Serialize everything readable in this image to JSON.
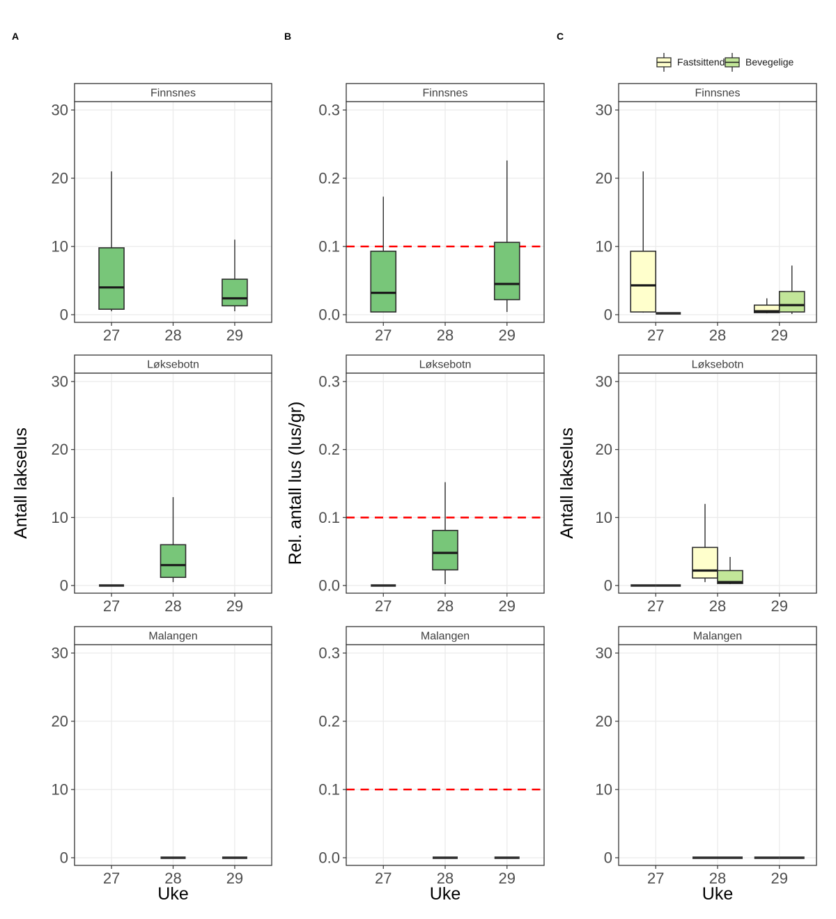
{
  "figure": {
    "panel_labels": [
      "A",
      "B",
      "C"
    ],
    "x_axis_title": "Uke",
    "x_categories": [
      "27",
      "28",
      "29"
    ],
    "facet_names": [
      "Finnsnes",
      "Løksebotn",
      "Malangen"
    ],
    "legend": {
      "items": [
        {
          "label": "Fastsittende",
          "color": "#FFFFCC"
        },
        {
          "label": "Bevegelige",
          "color": "#C2E699"
        }
      ]
    },
    "colors": {
      "single_series_fill": "#78C679",
      "fastsittende_fill": "#FFFFCC",
      "bevegelige_fill": "#C2E699",
      "box_stroke": "#2b2b2b",
      "median": "#1a1a1a",
      "grid": "#EBEBEB",
      "panel_border": "#333333",
      "reference_line": "#FF0000",
      "tick_label": "#4d4d4d",
      "strip_text": "#404040"
    }
  },
  "chart_data": [
    {
      "type": "boxplot",
      "panel": "A",
      "title": "",
      "ylabel": "Antall lakselus",
      "xlabel": "Uke",
      "ylim": [
        0,
        30
      ],
      "ytick_values": [
        0,
        10,
        20,
        30
      ],
      "ytick_labels": [
        "0",
        "10",
        "20",
        "30"
      ],
      "ref_line": null,
      "facets": [
        {
          "name": "Finnsnes",
          "boxes": [
            {
              "week": "27",
              "series": "all",
              "flat": false,
              "stats": {
                "min": 0.5,
                "q1": 0.8,
                "med": 4.0,
                "q3": 9.8,
                "max": 21.0
              }
            },
            {
              "week": "29",
              "series": "all",
              "flat": false,
              "stats": {
                "min": 0.5,
                "q1": 1.3,
                "med": 2.4,
                "q3": 5.2,
                "max": 11.0
              }
            }
          ]
        },
        {
          "name": "Løksebotn",
          "boxes": [
            {
              "week": "27",
              "series": "all",
              "flat": true,
              "stats": {
                "min": 0,
                "q1": 0,
                "med": 0,
                "q3": 0,
                "max": 0
              }
            },
            {
              "week": "28",
              "series": "all",
              "flat": false,
              "stats": {
                "min": 0.5,
                "q1": 1.2,
                "med": 3.0,
                "q3": 6.0,
                "max": 13.0
              }
            }
          ]
        },
        {
          "name": "Malangen",
          "boxes": [
            {
              "week": "28",
              "series": "all",
              "flat": true,
              "stats": {
                "min": 0,
                "q1": 0,
                "med": 0,
                "q3": 0,
                "max": 0
              }
            },
            {
              "week": "29",
              "series": "all",
              "flat": true,
              "stats": {
                "min": 0,
                "q1": 0,
                "med": 0,
                "q3": 0,
                "max": 0
              }
            }
          ]
        }
      ]
    },
    {
      "type": "boxplot",
      "panel": "B",
      "title": "",
      "ylabel": "Rel. antall lus (lus/gr)",
      "xlabel": "Uke",
      "ylim": [
        0,
        0.3
      ],
      "ytick_values": [
        0,
        0.1,
        0.2,
        0.3
      ],
      "ytick_labels": [
        "0.0",
        "0.1",
        "0.2",
        "0.3"
      ],
      "ref_line": 0.1,
      "facets": [
        {
          "name": "Finnsnes",
          "boxes": [
            {
              "week": "27",
              "series": "all",
              "flat": false,
              "stats": {
                "min": 0.004,
                "q1": 0.004,
                "med": 0.032,
                "q3": 0.093,
                "max": 0.173
              }
            },
            {
              "week": "29",
              "series": "all",
              "flat": false,
              "stats": {
                "min": 0.004,
                "q1": 0.022,
                "med": 0.045,
                "q3": 0.106,
                "max": 0.226
              }
            }
          ]
        },
        {
          "name": "Løksebotn",
          "boxes": [
            {
              "week": "27",
              "series": "all",
              "flat": true,
              "stats": {
                "min": 0,
                "q1": 0,
                "med": 0,
                "q3": 0,
                "max": 0
              }
            },
            {
              "week": "28",
              "series": "all",
              "flat": false,
              "stats": {
                "min": 0.002,
                "q1": 0.023,
                "med": 0.048,
                "q3": 0.081,
                "max": 0.152
              }
            }
          ]
        },
        {
          "name": "Malangen",
          "boxes": [
            {
              "week": "28",
              "series": "all",
              "flat": true,
              "stats": {
                "min": 0,
                "q1": 0,
                "med": 0,
                "q3": 0,
                "max": 0
              }
            },
            {
              "week": "29",
              "series": "all",
              "flat": true,
              "stats": {
                "min": 0,
                "q1": 0,
                "med": 0,
                "q3": 0,
                "max": 0
              }
            }
          ]
        }
      ]
    },
    {
      "type": "boxplot",
      "panel": "C",
      "title": "",
      "ylabel": "Antall lakselus",
      "xlabel": "Uke",
      "ylim": [
        0,
        30
      ],
      "ytick_values": [
        0,
        10,
        20,
        30
      ],
      "ytick_labels": [
        "0",
        "10",
        "20",
        "30"
      ],
      "ref_line": null,
      "facets": [
        {
          "name": "Finnsnes",
          "boxes": [
            {
              "week": "27",
              "series": "Fastsittende",
              "flat": false,
              "stats": {
                "min": 0.3,
                "q1": 0.4,
                "med": 4.3,
                "q3": 9.3,
                "max": 21.0
              }
            },
            {
              "week": "27",
              "series": "Bevegelige",
              "flat": true,
              "stats": {
                "min": 0.2,
                "q1": 0.2,
                "med": 0.2,
                "q3": 0.2,
                "max": 0.2
              }
            },
            {
              "week": "29",
              "series": "Fastsittende",
              "flat": false,
              "stats": {
                "min": 0.2,
                "q1": 0.3,
                "med": 0.5,
                "q3": 1.4,
                "max": 2.4
              }
            },
            {
              "week": "29",
              "series": "Bevegelige",
              "flat": false,
              "stats": {
                "min": 0.1,
                "q1": 0.4,
                "med": 1.4,
                "q3": 3.4,
                "max": 7.2
              }
            }
          ]
        },
        {
          "name": "Løksebotn",
          "boxes": [
            {
              "week": "27",
              "series": "Fastsittende",
              "flat": true,
              "stats": {
                "min": 0,
                "q1": 0,
                "med": 0,
                "q3": 0,
                "max": 0
              }
            },
            {
              "week": "27",
              "series": "Bevegelige",
              "flat": true,
              "stats": {
                "min": 0,
                "q1": 0,
                "med": 0,
                "q3": 0,
                "max": 0
              }
            },
            {
              "week": "28",
              "series": "Fastsittende",
              "flat": false,
              "stats": {
                "min": 0.5,
                "q1": 1.1,
                "med": 2.2,
                "q3": 5.6,
                "max": 12.0
              }
            },
            {
              "week": "28",
              "series": "Bevegelige",
              "flat": false,
              "stats": {
                "min": 0.2,
                "q1": 0.3,
                "med": 0.5,
                "q3": 2.2,
                "max": 4.2
              }
            }
          ]
        },
        {
          "name": "Malangen",
          "boxes": [
            {
              "week": "28",
              "series": "Fastsittende",
              "flat": true,
              "stats": {
                "min": 0,
                "q1": 0,
                "med": 0,
                "q3": 0,
                "max": 0
              }
            },
            {
              "week": "28",
              "series": "Bevegelige",
              "flat": true,
              "stats": {
                "min": 0,
                "q1": 0,
                "med": 0,
                "q3": 0,
                "max": 0
              }
            },
            {
              "week": "29",
              "series": "Fastsittende",
              "flat": true,
              "stats": {
                "min": 0,
                "q1": 0,
                "med": 0,
                "q3": 0,
                "max": 0
              }
            },
            {
              "week": "29",
              "series": "Bevegelige",
              "flat": true,
              "stats": {
                "min": 0,
                "q1": 0,
                "med": 0,
                "q3": 0,
                "max": 0
              }
            }
          ]
        }
      ]
    }
  ]
}
